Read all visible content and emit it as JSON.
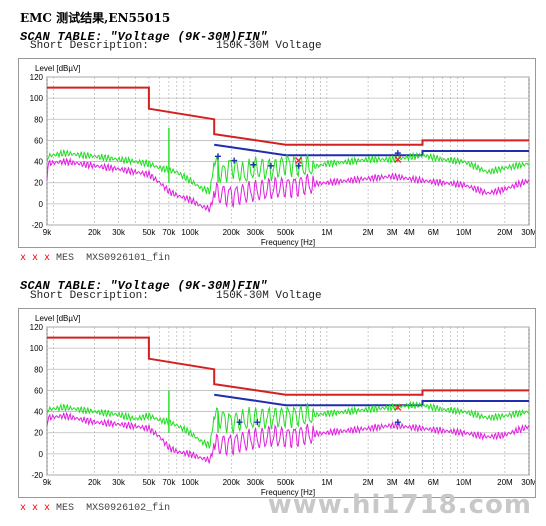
{
  "title": "EMC 测试结果,EN55015",
  "watermark": "www.hi1718.com",
  "panels": [
    {
      "scan_label": "SCAN TABLE: \"Voltage (9K-30M)FIN\"",
      "short_desc_label": "Short Description:",
      "short_desc_value": "150K-30M Voltage",
      "legend_marks": "x x x",
      "legend_label": "MES",
      "legend_file": "MXS0926101_fin"
    },
    {
      "scan_label": "SCAN TABLE: \"Voltage (9K-30M)FIN\"",
      "short_desc_label": "Short Description:",
      "short_desc_value": "150K-30M Voltage",
      "legend_marks": "x x x",
      "legend_label": "MES",
      "legend_file": "MXS0926102_fin"
    }
  ],
  "chart_data": [
    {
      "type": "line",
      "ylabel": "Level [dBµV]",
      "xlabel": "Frequency [Hz]",
      "xscale": "log",
      "xlim": [
        9000,
        30000000
      ],
      "ylim": [
        -20,
        120
      ],
      "grid": true,
      "yticks": [
        -20,
        0,
        20,
        40,
        60,
        80,
        100,
        120
      ],
      "xticks": [
        {
          "f": 9000,
          "label": "9k"
        },
        {
          "f": 20000,
          "label": "20k"
        },
        {
          "f": 30000,
          "label": "30k"
        },
        {
          "f": 50000,
          "label": "50k"
        },
        {
          "f": 70000,
          "label": "70k"
        },
        {
          "f": 100000,
          "label": "100k"
        },
        {
          "f": 200000,
          "label": "200k"
        },
        {
          "f": 300000,
          "label": "300k"
        },
        {
          "f": 500000,
          "label": "500k"
        },
        {
          "f": 1000000,
          "label": "1M"
        },
        {
          "f": 2000000,
          "label": "2M"
        },
        {
          "f": 3000000,
          "label": "3M"
        },
        {
          "f": 4000000,
          "label": "4M"
        },
        {
          "f": 6000000,
          "label": "6M"
        },
        {
          "f": 10000000,
          "label": "10M"
        },
        {
          "f": 20000000,
          "label": "20M"
        },
        {
          "f": 30000000,
          "label": "30M"
        }
      ],
      "series": [
        {
          "color": "#d42020",
          "step": true,
          "x": [
            9000,
            50000,
            50000,
            150000,
            150000,
            500000,
            5000000,
            5000000,
            30000000
          ],
          "y": [
            110,
            110,
            90,
            80,
            66,
            56,
            56,
            60,
            60
          ]
        },
        {
          "color": "#1f2fb0",
          "x": [
            150000,
            500000,
            5000000,
            5000000,
            30000000
          ],
          "y": [
            56,
            46,
            46,
            50,
            50
          ]
        },
        {
          "color": "#22dd22",
          "noisy": true,
          "x": [
            9000,
            12000,
            20000,
            30000,
            40000,
            50000,
            60000,
            70000,
            80000,
            100000,
            120000,
            140000,
            150000,
            170000,
            200000,
            250000,
            300000,
            400000,
            500000,
            600000,
            800000,
            1000000,
            1500000,
            2000000,
            3000000,
            4000000,
            5000000,
            7000000,
            10000000,
            15000000,
            20000000,
            30000000
          ],
          "y": [
            45,
            48,
            45,
            42,
            40,
            38,
            34,
            32,
            30,
            22,
            15,
            12,
            40,
            28,
            36,
            28,
            34,
            32,
            38,
            36,
            35,
            38,
            40,
            42,
            42,
            44,
            46,
            42,
            40,
            30,
            34,
            38
          ]
        },
        {
          "color": "#e020e0",
          "noisy": true,
          "x": [
            9000,
            12000,
            20000,
            30000,
            40000,
            50000,
            60000,
            70000,
            80000,
            100000,
            120000,
            140000,
            150000,
            200000,
            300000,
            400000,
            500000,
            700000,
            1000000,
            2000000,
            3000000,
            5000000,
            7000000,
            10000000,
            15000000,
            20000000,
            30000000
          ],
          "y": [
            38,
            40,
            36,
            33,
            30,
            28,
            20,
            12,
            8,
            4,
            -2,
            -5,
            10,
            8,
            12,
            14,
            16,
            18,
            20,
            24,
            26,
            22,
            20,
            18,
            10,
            14,
            22
          ]
        }
      ],
      "markers": [
        {
          "kind": "plus",
          "color": "#1f2fb0",
          "points": [
            [
              160000,
              45
            ],
            [
              210000,
              41
            ],
            [
              290000,
              37
            ],
            [
              390000,
              36
            ],
            [
              620000,
              36
            ],
            [
              3300000,
              48
            ]
          ]
        },
        {
          "kind": "x",
          "color": "#e03030",
          "points": [
            [
              620000,
              41
            ],
            [
              3300000,
              42
            ]
          ]
        }
      ],
      "spikes": [
        {
          "f": 70000,
          "y": 72
        },
        {
          "f": 160000,
          "y": 46
        }
      ]
    },
    {
      "type": "line",
      "ylabel": "Level [dBµV]",
      "xlabel": "Frequency [Hz]",
      "xscale": "log",
      "xlim": [
        9000,
        30000000
      ],
      "ylim": [
        -20,
        120
      ],
      "grid": true,
      "yticks": [
        -20,
        0,
        20,
        40,
        60,
        80,
        100,
        120
      ],
      "xticks": [
        {
          "f": 9000,
          "label": "9k"
        },
        {
          "f": 20000,
          "label": "20k"
        },
        {
          "f": 30000,
          "label": "30k"
        },
        {
          "f": 50000,
          "label": "50k"
        },
        {
          "f": 70000,
          "label": "70k"
        },
        {
          "f": 100000,
          "label": "100k"
        },
        {
          "f": 200000,
          "label": "200k"
        },
        {
          "f": 300000,
          "label": "300k"
        },
        {
          "f": 500000,
          "label": "500k"
        },
        {
          "f": 1000000,
          "label": "1M"
        },
        {
          "f": 2000000,
          "label": "2M"
        },
        {
          "f": 3000000,
          "label": "3M"
        },
        {
          "f": 4000000,
          "label": "4M"
        },
        {
          "f": 6000000,
          "label": "6M"
        },
        {
          "f": 10000000,
          "label": "10M"
        },
        {
          "f": 20000000,
          "label": "20M"
        },
        {
          "f": 30000000,
          "label": "30M"
        }
      ],
      "series": [
        {
          "color": "#d42020",
          "step": true,
          "x": [
            9000,
            50000,
            50000,
            150000,
            150000,
            500000,
            5000000,
            5000000,
            30000000
          ],
          "y": [
            110,
            110,
            90,
            80,
            66,
            56,
            56,
            60,
            60
          ]
        },
        {
          "color": "#1f2fb0",
          "x": [
            150000,
            500000,
            5000000,
            5000000,
            30000000
          ],
          "y": [
            56,
            46,
            46,
            50,
            50
          ]
        },
        {
          "color": "#22dd22",
          "noisy": true,
          "x": [
            9000,
            12000,
            20000,
            30000,
            40000,
            50000,
            60000,
            70000,
            80000,
            100000,
            120000,
            140000,
            150000,
            200000,
            300000,
            400000,
            500000,
            700000,
            1000000,
            2000000,
            3000000,
            4000000,
            5000000,
            7000000,
            10000000,
            15000000,
            20000000,
            30000000
          ],
          "y": [
            42,
            44,
            40,
            37,
            33,
            36,
            32,
            30,
            27,
            20,
            12,
            8,
            36,
            30,
            33,
            34,
            36,
            36,
            38,
            42,
            44,
            46,
            46,
            42,
            40,
            34,
            36,
            40
          ]
        },
        {
          "color": "#e020e0",
          "noisy": true,
          "x": [
            9000,
            12000,
            20000,
            30000,
            40000,
            50000,
            60000,
            70000,
            80000,
            100000,
            120000,
            140000,
            150000,
            200000,
            300000,
            400000,
            500000,
            700000,
            1000000,
            2000000,
            3000000,
            5000000,
            7000000,
            10000000,
            15000000,
            20000000,
            30000000
          ],
          "y": [
            34,
            36,
            30,
            28,
            26,
            24,
            16,
            6,
            2,
            0,
            -4,
            -6,
            8,
            10,
            14,
            16,
            16,
            18,
            20,
            24,
            27,
            24,
            22,
            20,
            16,
            18,
            26
          ]
        }
      ],
      "markers": [
        {
          "kind": "plus",
          "color": "#1f2fb0",
          "points": [
            [
              230000,
              30
            ],
            [
              310000,
              30
            ],
            [
              3300000,
              30
            ]
          ]
        },
        {
          "kind": "x",
          "color": "#e03030",
          "points": [
            [
              3300000,
              44
            ]
          ]
        }
      ],
      "spikes": [
        {
          "f": 70000,
          "y": 60
        },
        {
          "f": 160000,
          "y": 40
        }
      ]
    }
  ]
}
